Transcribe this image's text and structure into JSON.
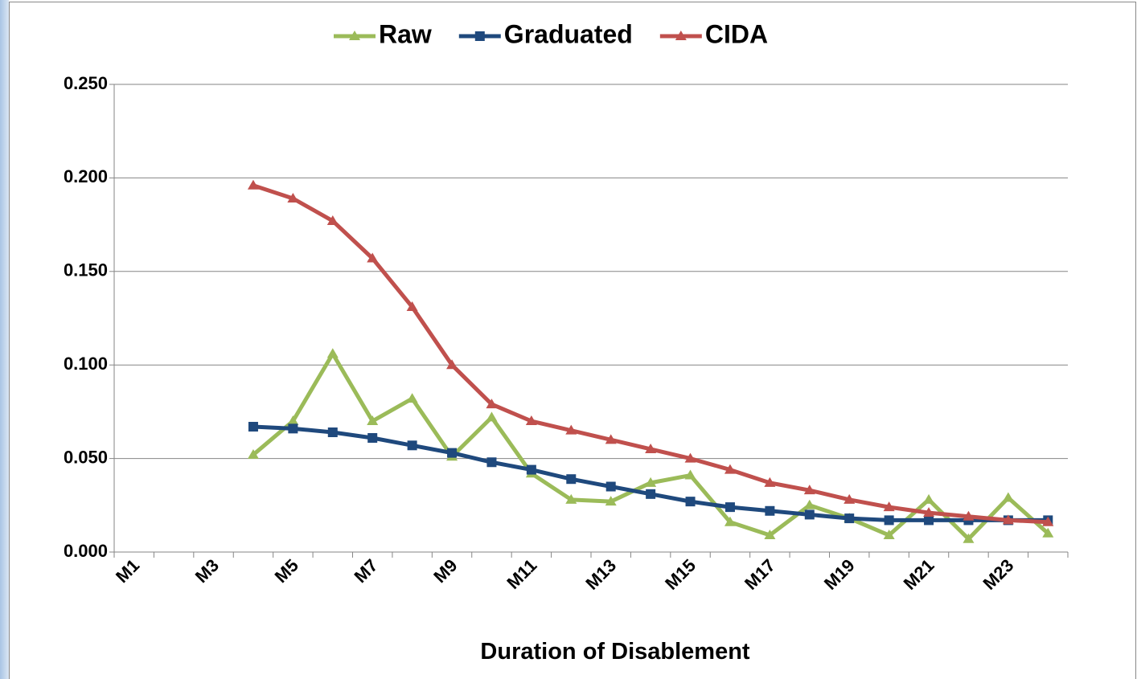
{
  "chart_data": {
    "type": "line",
    "x_label": "Duration of Disablement",
    "categories": [
      "M1",
      null,
      "M3",
      null,
      "M5",
      null,
      "M7",
      null,
      "M9",
      null,
      "M11",
      null,
      "M13",
      null,
      "M15",
      null,
      "M17",
      null,
      "M19",
      null,
      "M21",
      null,
      "M23",
      null
    ],
    "ylim": [
      0,
      0.25
    ],
    "yticks": [
      {
        "value": 0,
        "label": "0.000"
      },
      {
        "value": 0.05,
        "label": "0.050"
      },
      {
        "value": 0.1,
        "label": "0.100"
      },
      {
        "value": 0.15,
        "label": "0.150"
      },
      {
        "value": 0.2,
        "label": "0.200"
      },
      {
        "value": 0.25,
        "label": "0.250"
      }
    ],
    "grid": true,
    "legend": "top",
    "series": [
      {
        "name": "Raw",
        "color": "#9bbb59",
        "marker": "triangle",
        "values": [
          null,
          null,
          null,
          0.052,
          0.07,
          0.106,
          0.07,
          0.082,
          0.051,
          0.072,
          0.042,
          0.028,
          0.027,
          0.037,
          0.041,
          0.016,
          0.009,
          0.025,
          0.018,
          0.009,
          0.028,
          0.007,
          0.029,
          0.01
        ]
      },
      {
        "name": "Graduated",
        "color": "#1f497d",
        "marker": "square",
        "values": [
          null,
          null,
          null,
          0.067,
          0.066,
          0.064,
          0.061,
          0.057,
          0.053,
          0.048,
          0.044,
          0.039,
          0.035,
          0.031,
          0.027,
          0.024,
          0.022,
          0.02,
          0.018,
          0.017,
          0.017,
          0.017,
          0.017,
          0.017
        ]
      },
      {
        "name": "CIDA",
        "color": "#c0504d",
        "marker": "triangle",
        "values": [
          null,
          null,
          null,
          0.196,
          0.189,
          0.177,
          0.157,
          0.131,
          0.1,
          0.079,
          0.07,
          0.065,
          0.06,
          0.055,
          0.05,
          0.044,
          0.037,
          0.033,
          0.028,
          0.024,
          0.021,
          0.019,
          0.017,
          0.016
        ]
      }
    ]
  }
}
